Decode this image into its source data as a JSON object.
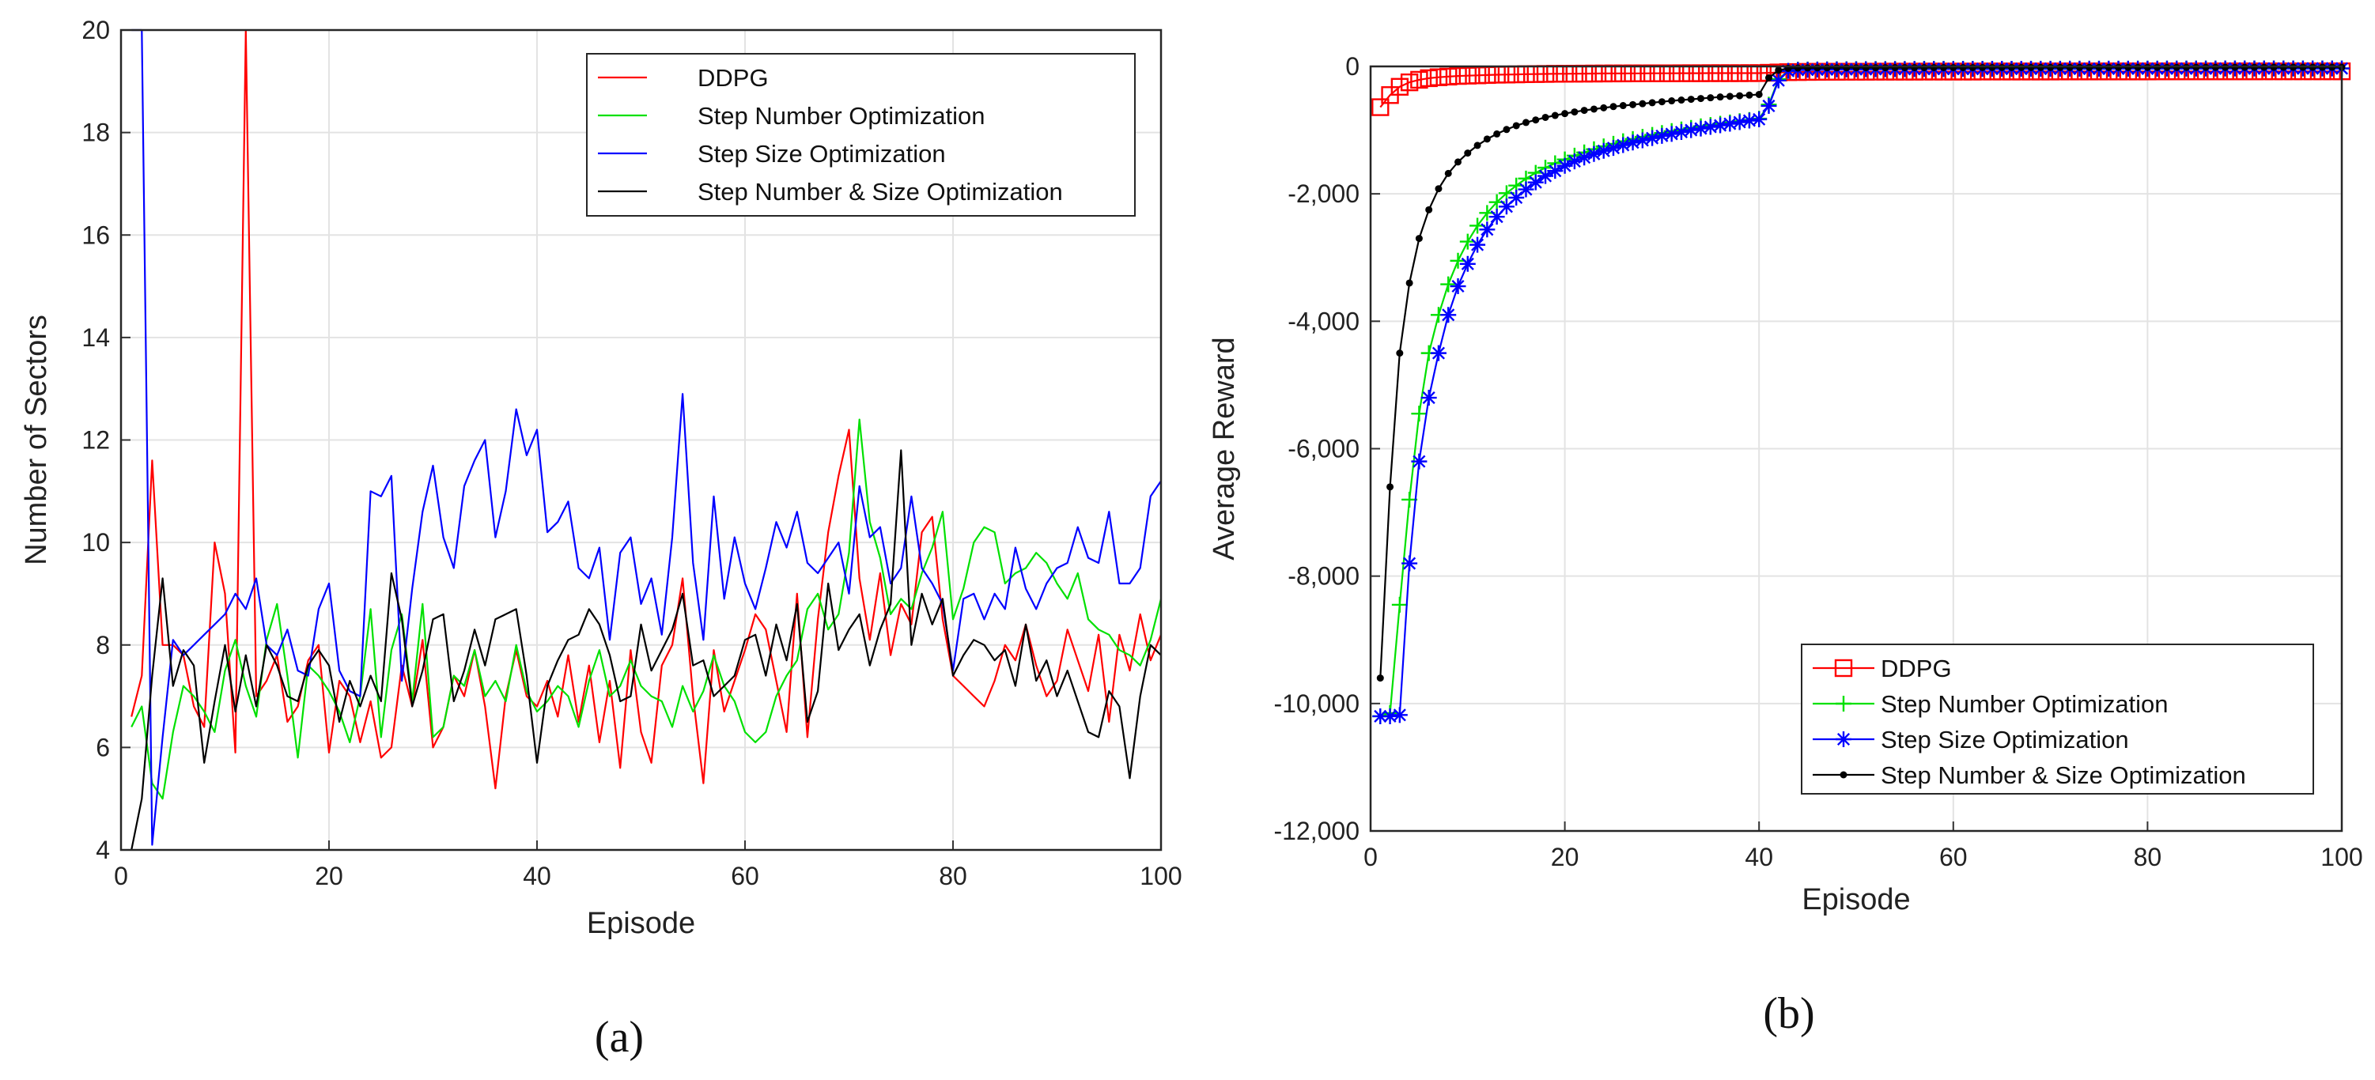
{
  "chart_data": [
    {
      "type": "line",
      "title": "",
      "caption": "(a)",
      "xlabel": "Episode",
      "ylabel": "Number of Sectors",
      "xlim": [
        0,
        100
      ],
      "ylim": [
        4,
        20
      ],
      "xticks": [
        "0",
        "20",
        "40",
        "60",
        "80",
        "100"
      ],
      "yticks": [
        "4",
        "6",
        "8",
        "10",
        "12",
        "14",
        "16",
        "18",
        "20"
      ],
      "grid": true,
      "legend_position": "top-right",
      "series": [
        {
          "name": "DDPG",
          "color": "#ff0000",
          "values": [
            6.6,
            7.4,
            11.6,
            8.0,
            8.0,
            7.8,
            6.8,
            6.4,
            10.0,
            9.0,
            5.9,
            20.0,
            7.0,
            7.3,
            7.8,
            6.5,
            6.8,
            7.7,
            8.0,
            5.9,
            7.3,
            7.0,
            6.1,
            6.9,
            5.8,
            6.0,
            7.6,
            6.8,
            8.1,
            6.0,
            6.4,
            7.4,
            7.0,
            7.9,
            6.8,
            5.2,
            7.0,
            7.9,
            7.0,
            6.8,
            7.3,
            6.6,
            7.8,
            6.5,
            7.6,
            6.1,
            7.3,
            5.6,
            7.9,
            6.3,
            5.7,
            7.6,
            8.0,
            9.3,
            7.0,
            5.3,
            7.9,
            6.7,
            7.3,
            7.9,
            8.6,
            8.3,
            7.3,
            6.3,
            9.0,
            6.2,
            8.5,
            10.2,
            11.3,
            12.2,
            9.3,
            8.1,
            9.4,
            7.8,
            8.8,
            8.4,
            10.2,
            10.5,
            8.5,
            7.4,
            7.2,
            7.0,
            6.8,
            7.3,
            8.0,
            7.7,
            8.4,
            7.6,
            7.0,
            7.3,
            8.3,
            7.7,
            7.1,
            8.2,
            6.5,
            8.2,
            7.5,
            8.6,
            7.7,
            8.2
          ]
        },
        {
          "name": "Step Number Optimization",
          "color": "#00e000",
          "values": [
            6.4,
            6.8,
            5.3,
            5.0,
            6.3,
            7.2,
            7.0,
            6.7,
            6.3,
            7.5,
            8.1,
            7.2,
            6.6,
            8.1,
            8.8,
            7.4,
            5.8,
            7.6,
            7.4,
            7.1,
            6.7,
            6.1,
            7.0,
            8.7,
            6.2,
            7.9,
            8.6,
            6.9,
            8.8,
            6.2,
            6.4,
            7.4,
            7.2,
            7.9,
            7.0,
            7.3,
            6.9,
            8.0,
            7.1,
            6.7,
            6.9,
            7.2,
            7.0,
            6.4,
            7.3,
            7.9,
            7.0,
            7.2,
            7.7,
            7.2,
            7.0,
            6.9,
            6.4,
            7.2,
            6.7,
            7.1,
            7.8,
            7.2,
            6.9,
            6.3,
            6.1,
            6.3,
            7.0,
            7.4,
            7.7,
            8.7,
            9.0,
            8.3,
            8.6,
            9.8,
            12.4,
            10.4,
            9.7,
            8.6,
            8.9,
            8.7,
            9.4,
            9.9,
            10.6,
            8.5,
            9.1,
            10.0,
            10.3,
            10.2,
            9.2,
            9.4,
            9.5,
            9.8,
            9.6,
            9.2,
            8.9,
            9.4,
            8.5,
            8.3,
            8.2,
            7.9,
            7.8,
            7.6,
            8.1,
            8.9
          ]
        },
        {
          "name": "Step Size Optimization",
          "color": "#0000ff",
          "values": [
            20.0,
            20.0,
            4.1,
            6.2,
            8.1,
            7.8,
            8.0,
            8.2,
            8.4,
            8.6,
            9.0,
            8.7,
            9.3,
            8.0,
            7.8,
            8.3,
            7.5,
            7.4,
            8.7,
            9.2,
            7.5,
            7.1,
            7.0,
            11.0,
            10.9,
            11.3,
            7.3,
            9.1,
            10.6,
            11.5,
            10.1,
            9.5,
            11.1,
            11.6,
            12.0,
            10.1,
            11.0,
            12.6,
            11.7,
            12.2,
            10.2,
            10.4,
            10.8,
            9.5,
            9.3,
            9.9,
            8.1,
            9.8,
            10.1,
            8.8,
            9.3,
            8.2,
            10.1,
            12.9,
            9.6,
            8.1,
            10.9,
            8.9,
            10.1,
            9.2,
            8.7,
            9.5,
            10.4,
            9.9,
            10.6,
            9.6,
            9.4,
            9.7,
            10.0,
            9.0,
            11.1,
            10.1,
            10.3,
            9.2,
            9.5,
            10.9,
            9.5,
            9.2,
            8.8,
            7.5,
            8.9,
            9.0,
            8.5,
            9.0,
            8.7,
            9.9,
            9.1,
            8.7,
            9.2,
            9.5,
            9.6,
            10.3,
            9.7,
            9.6,
            10.6,
            9.2,
            9.2,
            9.5,
            10.9,
            11.2
          ]
        },
        {
          "name": "Step Number & Size Optimization",
          "color": "#000000",
          "values": [
            4.0,
            5.0,
            7.4,
            9.3,
            7.2,
            7.9,
            7.6,
            5.7,
            6.9,
            8.0,
            6.7,
            7.8,
            6.8,
            8.0,
            7.6,
            7.0,
            6.9,
            7.6,
            7.9,
            7.6,
            6.5,
            7.3,
            6.8,
            7.4,
            6.9,
            9.4,
            8.5,
            6.8,
            7.5,
            8.5,
            8.6,
            6.9,
            7.5,
            8.3,
            7.6,
            8.5,
            8.6,
            8.7,
            7.4,
            5.7,
            7.2,
            7.7,
            8.1,
            8.2,
            8.7,
            8.4,
            7.8,
            6.9,
            7.0,
            8.4,
            7.5,
            7.9,
            8.3,
            9.0,
            7.6,
            7.7,
            7.0,
            7.2,
            7.4,
            8.1,
            8.2,
            7.4,
            8.4,
            7.7,
            8.8,
            6.5,
            7.1,
            9.2,
            7.9,
            8.3,
            8.6,
            7.6,
            8.3,
            8.8,
            11.8,
            8.0,
            9.0,
            8.4,
            8.9,
            7.4,
            7.8,
            8.1,
            8.0,
            7.7,
            7.9,
            7.2,
            8.4,
            7.3,
            7.7,
            7.0,
            7.5,
            6.9,
            6.3,
            6.2,
            7.1,
            6.8,
            5.4,
            7.0,
            8.0,
            7.8
          ]
        }
      ]
    },
    {
      "type": "line",
      "title": "",
      "caption": "(b)",
      "xlabel": "Episode",
      "ylabel": "Average Reward",
      "xlim": [
        0,
        100
      ],
      "ylim": [
        -12000,
        0
      ],
      "xticks": [
        "0",
        "20",
        "40",
        "60",
        "80",
        "100"
      ],
      "yticks": [
        "-12,000",
        "-10,000",
        "-8,000",
        "-6,000",
        "-4,000",
        "-2,000",
        "0"
      ],
      "grid": true,
      "legend_position": "bottom-right",
      "series": [
        {
          "name": "DDPG",
          "color": "#ff0000",
          "marker": "square",
          "values": [
            -640,
            -450,
            -320,
            -250,
            -210,
            -185,
            -170,
            -160,
            -150,
            -145,
            -140,
            -135,
            -130,
            -128,
            -125,
            -122,
            -120,
            -118,
            -116,
            -115,
            -114,
            -113,
            -112,
            -111,
            -110,
            -110,
            -109,
            -109,
            -108,
            -108,
            -108,
            -107,
            -107,
            -107,
            -106,
            -106,
            -106,
            -106,
            -105,
            -105,
            -100,
            -95,
            -90,
            -88,
            -86,
            -85,
            -84,
            -84,
            -83,
            -83,
            -83,
            -82,
            -82,
            -82,
            -82,
            -82,
            -81,
            -81,
            -81,
            -81,
            -81,
            -81,
            -80,
            -80,
            -80,
            -80,
            -80,
            -80,
            -80,
            -80,
            -79,
            -79,
            -79,
            -79,
            -79,
            -79,
            -79,
            -79,
            -79,
            -79,
            -78,
            -78,
            -78,
            -78,
            -78,
            -78,
            -78,
            -78,
            -78,
            -78,
            -78,
            -77,
            -77,
            -77,
            -77,
            -77,
            -77,
            -77,
            -77,
            -77
          ]
        },
        {
          "name": "Step Number Optimization",
          "color": "#00e000",
          "marker": "plus",
          "values": [
            -10200,
            -10150,
            -8450,
            -6800,
            -5450,
            -4500,
            -3900,
            -3420,
            -3050,
            -2750,
            -2500,
            -2300,
            -2130,
            -1990,
            -1870,
            -1760,
            -1670,
            -1590,
            -1520,
            -1460,
            -1400,
            -1350,
            -1300,
            -1255,
            -1215,
            -1175,
            -1140,
            -1105,
            -1075,
            -1045,
            -1015,
            -990,
            -965,
            -940,
            -920,
            -900,
            -880,
            -860,
            -840,
            -820,
            -600,
            -200,
            -70,
            -50,
            -48,
            -46,
            -45,
            -44,
            -43,
            -42,
            -42,
            -41,
            -41,
            -40,
            -40,
            -40,
            -39,
            -39,
            -39,
            -38,
            -38,
            -38,
            -38,
            -37,
            -37,
            -37,
            -37,
            -36,
            -36,
            -36,
            -36,
            -36,
            -35,
            -35,
            -35,
            -35,
            -35,
            -35,
            -34,
            -34,
            -34,
            -34,
            -34,
            -34,
            -33,
            -33,
            -33,
            -33,
            -33,
            -33,
            -33,
            -32,
            -32,
            -32,
            -32,
            -32,
            -32,
            -32,
            -31,
            -31
          ]
        },
        {
          "name": "Step Size Optimization",
          "color": "#0000ff",
          "marker": "star",
          "values": [
            -10200,
            -10200,
            -10180,
            -7800,
            -6200,
            -5200,
            -4500,
            -3900,
            -3450,
            -3100,
            -2800,
            -2560,
            -2360,
            -2200,
            -2060,
            -1930,
            -1820,
            -1720,
            -1640,
            -1560,
            -1490,
            -1430,
            -1375,
            -1325,
            -1280,
            -1235,
            -1195,
            -1160,
            -1125,
            -1090,
            -1060,
            -1030,
            -1000,
            -975,
            -950,
            -925,
            -900,
            -875,
            -850,
            -830,
            -620,
            -220,
            -70,
            -55,
            -52,
            -50,
            -48,
            -47,
            -46,
            -45,
            -44,
            -43,
            -43,
            -42,
            -42,
            -41,
            -41,
            -40,
            -40,
            -40,
            -39,
            -39,
            -39,
            -38,
            -38,
            -38,
            -38,
            -37,
            -37,
            -37,
            -37,
            -36,
            -36,
            -36,
            -36,
            -36,
            -35,
            -35,
            -35,
            -35,
            -35,
            -34,
            -34,
            -34,
            -34,
            -34,
            -34,
            -33,
            -33,
            -33,
            -33,
            -33,
            -33,
            -33,
            -32,
            -32,
            -32,
            -32,
            -32,
            -32
          ]
        },
        {
          "name": "Step Number & Size Optimization",
          "color": "#000000",
          "marker": "dot",
          "values": [
            -9600,
            -6600,
            -4500,
            -3400,
            -2700,
            -2250,
            -1920,
            -1680,
            -1500,
            -1360,
            -1240,
            -1140,
            -1060,
            -990,
            -930,
            -880,
            -840,
            -800,
            -770,
            -740,
            -715,
            -690,
            -670,
            -650,
            -630,
            -615,
            -600,
            -585,
            -570,
            -555,
            -540,
            -528,
            -516,
            -504,
            -492,
            -480,
            -470,
            -460,
            -450,
            -440,
            -180,
            -60,
            -30,
            -25,
            -24,
            -23,
            -22,
            -22,
            -21,
            -21,
            -20,
            -20,
            -20,
            -19,
            -19,
            -19,
            -19,
            -18,
            -18,
            -18,
            -18,
            -18,
            -17,
            -17,
            -17,
            -17,
            -17,
            -17,
            -16,
            -16,
            -16,
            -16,
            -16,
            -16,
            -16,
            -15,
            -15,
            -15,
            -15,
            -15,
            -15,
            -15,
            -15,
            -14,
            -14,
            -14,
            -14,
            -14,
            -14,
            -14,
            -14,
            -14,
            -13,
            -13,
            -13,
            -13,
            -13,
            -13,
            -13,
            -13
          ]
        }
      ]
    }
  ]
}
